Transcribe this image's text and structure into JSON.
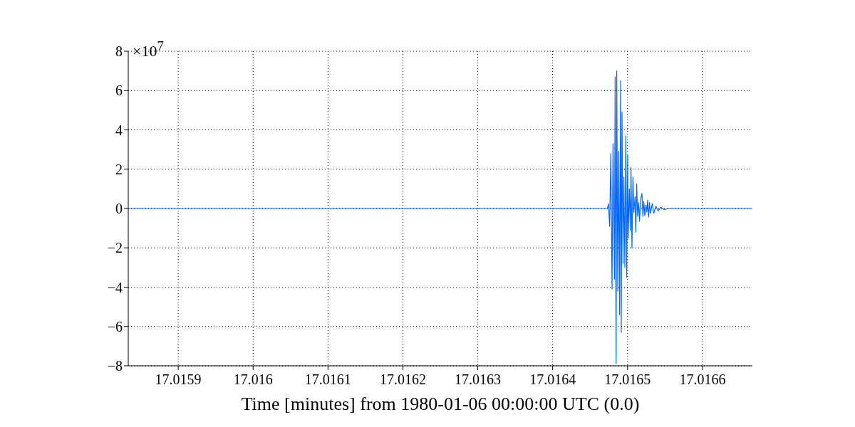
{
  "chart_data": {
    "type": "line",
    "xlabel": "Time [minutes] from 1980-01-06 00:00:00 UTC (0.0)",
    "annotations": [
      "×10$^{7}$"
    ],
    "x": [
      17.0158333,
      17.0164603,
      17.016473,
      17.0164746,
      17.0164761,
      17.0164777,
      17.0164793,
      17.0164806,
      17.0164825,
      17.0164834,
      17.0164847,
      17.0164856,
      17.0164869,
      17.0164882,
      17.0164894,
      17.0164907,
      17.0164916,
      17.0164926,
      17.0164939,
      17.0164951,
      17.0164964,
      17.0164977,
      17.0164989,
      17.0165002,
      17.0165008,
      17.0165024,
      17.0165037,
      17.0165046,
      17.0165059,
      17.0165072,
      17.0165084,
      17.01651,
      17.016511,
      17.0165122,
      17.0165135,
      17.0165148,
      17.016516,
      17.0165173,
      17.0165192,
      17.0165205,
      17.0165217,
      17.016523,
      17.0165246,
      17.0165258,
      17.0165268,
      17.0165281,
      17.0165293,
      17.0165306,
      17.0165331,
      17.016535,
      17.0165379,
      17.016541,
      17.0165442,
      17.0165489,
      17.0165553,
      17.0166667
    ],
    "series": [
      {
        "color": "#0066ff",
        "values": [
          0,
          0,
          0,
          0.24,
          -0.9,
          2.8,
          -4.1,
          3.3,
          -3.6,
          6.7,
          -7.9,
          7.0,
          -4.2,
          2.9,
          -5.4,
          6.5,
          -6.3,
          4.9,
          -2.8,
          1.6,
          -3.0,
          3.7,
          -3.5,
          2.7,
          -1.5,
          1.0,
          -1.1,
          2.1,
          -2.0,
          1.6,
          -0.2,
          0.6,
          -1.2,
          1.25,
          -0.4,
          0.3,
          -0.65,
          0.4,
          0.77,
          -0.4,
          0.36,
          -0.36,
          0.18,
          -0.18,
          0.42,
          -0.42,
          0.3,
          -0.24,
          0.26,
          -0.24,
          0.12,
          -0.12,
          0.06,
          -0.05,
          0,
          0
        ]
      }
    ],
    "xlim": [
      17.0158333,
      17.0166667
    ],
    "xticks": [
      17.0159,
      17.016,
      17.0161,
      17.0162,
      17.0163,
      17.0164,
      17.0165,
      17.0166
    ],
    "ylim": [
      -8,
      8
    ],
    "yticks": [
      -8,
      -6,
      -4,
      -2,
      0,
      2,
      4,
      6,
      8
    ],
    "grid": true,
    "marker": "none",
    "line_style": "solid"
  }
}
